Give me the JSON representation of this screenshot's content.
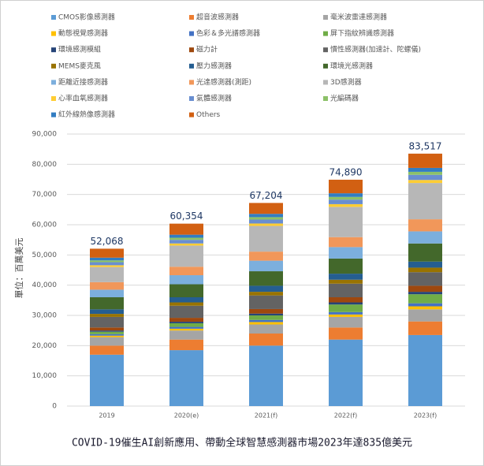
{
  "chart_data": {
    "type": "stacked_bar",
    "y_label": "單位：百萬美元",
    "caption": "COVID-19催生AI創新應用、帶動全球智慧感測器市場2023年達835億美元",
    "categories": [
      "2019",
      "2020(e)",
      "2021(f)",
      "2022(f)",
      "2023(f)"
    ],
    "totals": [
      52068,
      60354,
      67204,
      74890,
      83517
    ],
    "total_labels": [
      "52,068",
      "60,354",
      "67,204",
      "74,890",
      "83,517"
    ],
    "ylim": [
      0,
      90000
    ],
    "yticks": [
      {
        "value": 0,
        "label": "0"
      },
      {
        "value": 10000,
        "label": "10,000"
      },
      {
        "value": 20000,
        "label": "20,000"
      },
      {
        "value": 30000,
        "label": "30,000"
      },
      {
        "value": 40000,
        "label": "40,000"
      },
      {
        "value": 50000,
        "label": "50,000"
      },
      {
        "value": 60000,
        "label": "60,000"
      },
      {
        "value": 70000,
        "label": "70,000"
      },
      {
        "value": 80000,
        "label": "80,000"
      },
      {
        "value": 90000,
        "label": "90,000"
      }
    ],
    "grid": true,
    "series": [
      {
        "name": "CMOS影像感測器",
        "color": "#5b9bd5",
        "values": [
          17000,
          18500,
          20000,
          22000,
          23500
        ]
      },
      {
        "name": "超音波感測器",
        "color": "#ed7d31",
        "values": [
          3000,
          3500,
          4000,
          4000,
          4500
        ]
      },
      {
        "name": "毫米波雷達感測器",
        "color": "#a5a5a5",
        "values": [
          2800,
          3000,
          3000,
          3500,
          4000
        ]
      },
      {
        "name": "動態視覺感測器",
        "color": "#ffc000",
        "values": [
          500,
          600,
          800,
          800,
          1000
        ]
      },
      {
        "name": "色彩＆多光譜感測器",
        "color": "#4472c4",
        "values": [
          500,
          600,
          700,
          800,
          1000
        ]
      },
      {
        "name": "屏下指紋辨識感測器",
        "color": "#70ad47",
        "values": [
          800,
          1200,
          1500,
          2500,
          3000
        ]
      },
      {
        "name": "環境感測模組",
        "color": "#264478",
        "values": [
          400,
          500,
          600,
          700,
          800
        ]
      },
      {
        "name": "磁力計",
        "color": "#9e480e",
        "values": [
          1000,
          1300,
          1500,
          1700,
          2000
        ]
      },
      {
        "name": "慣性感測器(加速計、陀螺儀)",
        "color": "#636363",
        "values": [
          3500,
          4000,
          4500,
          4500,
          4500
        ]
      },
      {
        "name": "MEMS麥克風",
        "color": "#997300",
        "values": [
          1000,
          1100,
          1200,
          1300,
          1500
        ]
      },
      {
        "name": "壓力感測器",
        "color": "#255e91",
        "values": [
          1500,
          1700,
          2000,
          2000,
          2000
        ]
      },
      {
        "name": "環境光感測器",
        "color": "#43682b",
        "values": [
          4000,
          4300,
          4800,
          5000,
          6000
        ]
      },
      {
        "name": "距離近接感測器",
        "color": "#7cafdd",
        "values": [
          2500,
          3000,
          3500,
          3800,
          4000
        ]
      },
      {
        "name": "光達感測器(測距)",
        "color": "#f1975a",
        "values": [
          2500,
          2800,
          3000,
          3300,
          4000
        ]
      },
      {
        "name": "3D感測器",
        "color": "#b7b7b7",
        "values": [
          5000,
          7000,
          8500,
          10000,
          12000
        ]
      },
      {
        "name": "心率血氧感測器",
        "color": "#ffcd33",
        "values": [
          600,
          700,
          800,
          900,
          1000
        ]
      },
      {
        "name": "氣體感測器",
        "color": "#698ed0",
        "values": [
          1000,
          1200,
          1300,
          1500,
          1700
        ]
      },
      {
        "name": "光編碼器",
        "color": "#8cc168",
        "values": [
          600,
          700,
          800,
          900,
          1000
        ]
      },
      {
        "name": "紅外線熱像感測器",
        "color": "#327dc2",
        "values": [
          900,
          1000,
          1100,
          1200,
          1300
        ]
      },
      {
        "name": "Others",
        "color": "#d26012",
        "values": [
          2968,
          3654,
          3604,
          4490,
          4717
        ]
      }
    ]
  }
}
